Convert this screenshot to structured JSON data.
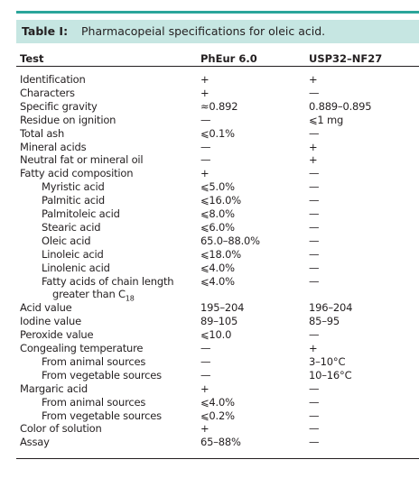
{
  "table": {
    "title": {
      "label": "Table I:",
      "text": "Pharmacopeial specifications for oleic acid."
    },
    "headers": [
      "Test",
      "PhEur 6.0",
      "USP32–NF27"
    ],
    "rows": [
      {
        "test": "Identification",
        "pheur": "+",
        "usp": "+"
      },
      {
        "test": "Characters",
        "pheur": "+",
        "usp": "—"
      },
      {
        "test": "Specific gravity",
        "pheur": "≈0.892",
        "usp": "0.889–0.895"
      },
      {
        "test": "Residue on ignition",
        "pheur": "—",
        "usp": "⩽1 mg"
      },
      {
        "test": "Total ash",
        "pheur": "⩽0.1%",
        "usp": "—"
      },
      {
        "test": "Mineral acids",
        "pheur": "—",
        "usp": "+"
      },
      {
        "test": "Neutral fat or mineral oil",
        "pheur": "—",
        "usp": "+"
      },
      {
        "test": "Fatty acid composition",
        "pheur": "+",
        "usp": "—"
      },
      {
        "test": "Myristic acid",
        "pheur": "⩽5.0%",
        "usp": "—",
        "indent": 1
      },
      {
        "test": "Palmitic acid",
        "pheur": "⩽16.0%",
        "usp": "—",
        "indent": 1
      },
      {
        "test": "Palmitoleic acid",
        "pheur": "⩽8.0%",
        "usp": "—",
        "indent": 1
      },
      {
        "test": "Stearic acid",
        "pheur": "⩽6.0%",
        "usp": "—",
        "indent": 1
      },
      {
        "test": "Oleic acid",
        "pheur": "65.0–88.0%",
        "usp": "—",
        "indent": 1
      },
      {
        "test": "Linoleic acid",
        "pheur": "⩽18.0%",
        "usp": "—",
        "indent": 1
      },
      {
        "test": "Linolenic acid",
        "pheur": "⩽4.0%",
        "usp": "—",
        "indent": 1
      },
      {
        "test": "Fatty acids of chain length",
        "test_line2": "greater than C",
        "test_sub": "18",
        "pheur": "⩽4.0%",
        "usp": "—",
        "indent": 1
      },
      {
        "test": "Acid value",
        "pheur": "195–204",
        "usp": "196–204"
      },
      {
        "test": "Iodine value",
        "pheur": "89–105",
        "usp": "85–95"
      },
      {
        "test": "Peroxide value",
        "pheur": "⩽10.0",
        "usp": "—"
      },
      {
        "test": "Congealing temperature",
        "pheur": "—",
        "usp": "+"
      },
      {
        "test": "From animal sources",
        "pheur": "—",
        "usp": "3–10°C",
        "indent": 1
      },
      {
        "test": "From vegetable sources",
        "pheur": "—",
        "usp": "10–16°C",
        "indent": 1
      },
      {
        "test": "Margaric acid",
        "pheur": "+",
        "usp": "—"
      },
      {
        "test": "From animal sources",
        "pheur": "⩽4.0%",
        "usp": "—",
        "indent": 1
      },
      {
        "test": "From vegetable sources",
        "pheur": "⩽0.2%",
        "usp": "—",
        "indent": 1
      },
      {
        "test": "Color of solution",
        "pheur": "+",
        "usp": "—"
      },
      {
        "test": "Assay",
        "pheur": "65–88%",
        "usp": "—"
      }
    ]
  }
}
